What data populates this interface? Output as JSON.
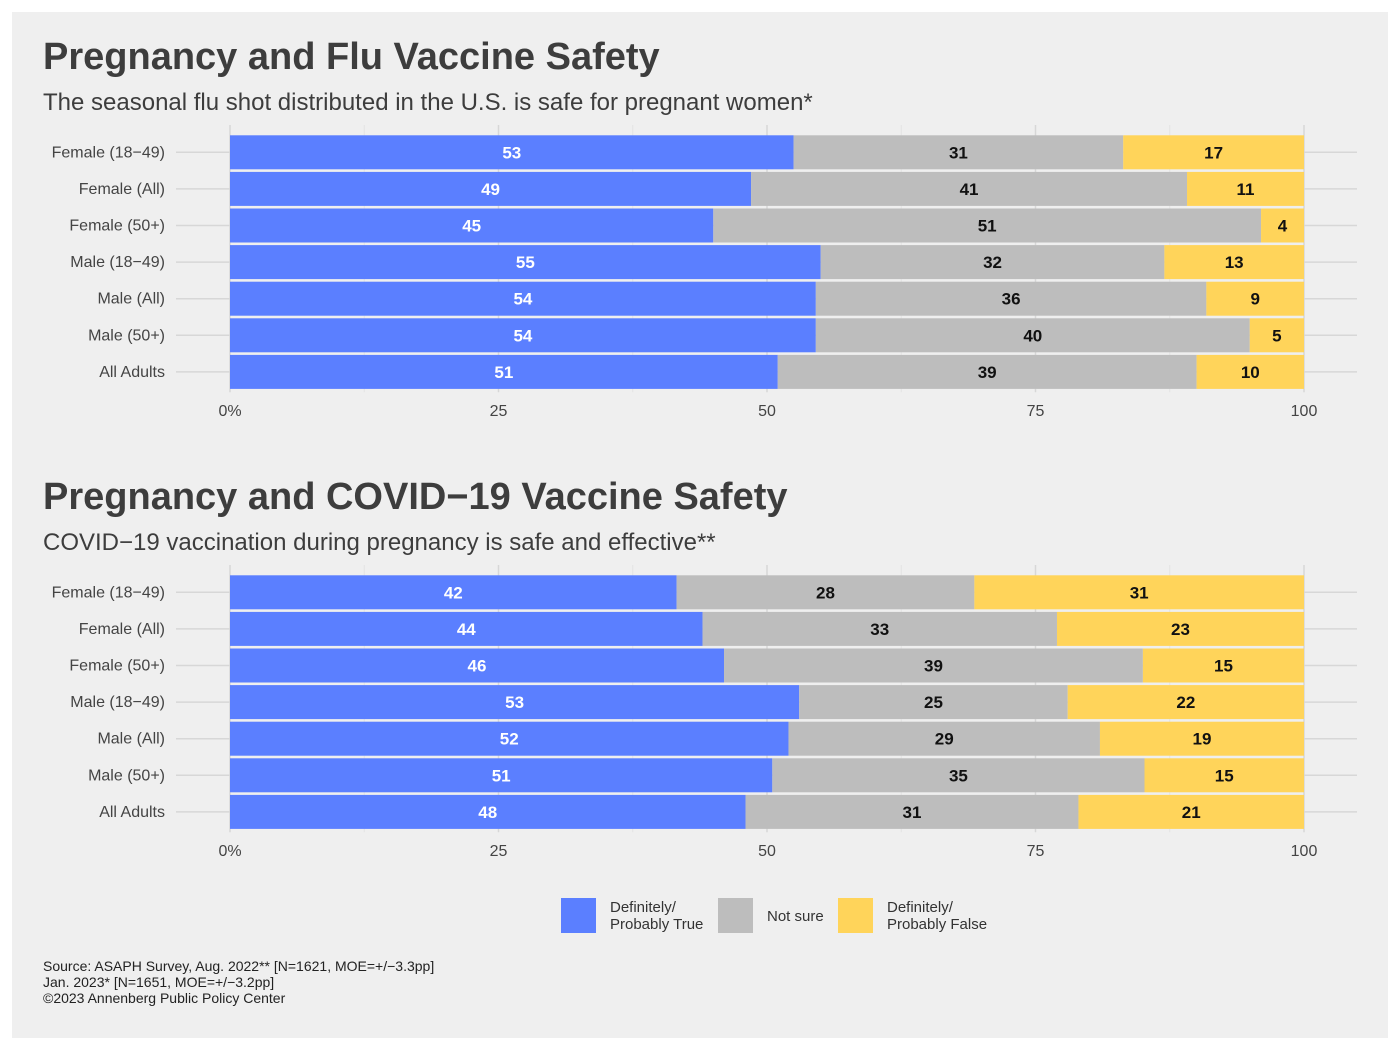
{
  "legend": [
    {
      "label": "Definitely/\nProbably True",
      "color": "#5b7fff"
    },
    {
      "label": "Not sure",
      "color": "#bdbdbd"
    },
    {
      "label": "Definitely/\nProbably False",
      "color": "#ffd45a"
    }
  ],
  "source": [
    "Source: ASAPH Survey, Aug. 2022** [N=1621, MOE=+/−3.3pp]",
    "Jan. 2023* [N=1651, MOE=+/−3.2pp]",
    "©2023 Annenberg Public Policy Center"
  ],
  "chart_data": [
    {
      "type": "bar",
      "orientation": "horizontal",
      "stacked": true,
      "title": "Pregnancy and Flu Vaccine Safety",
      "subtitle": "The seasonal flu shot distributed in the U.S. is safe for pregnant women*",
      "categories": [
        "Female (18−49)",
        "Female (All)",
        "Female (50+)",
        "Male (18−49)",
        "Male (All)",
        "Male (50+)",
        "All Adults"
      ],
      "series": [
        {
          "name": "Definitely/ Probably True",
          "values": [
            53,
            49,
            45,
            55,
            54,
            54,
            51
          ]
        },
        {
          "name": "Not sure",
          "values": [
            31,
            41,
            51,
            32,
            36,
            40,
            39
          ]
        },
        {
          "name": "Definitely/ Probably False",
          "values": [
            17,
            11,
            4,
            13,
            9,
            5,
            10
          ]
        }
      ],
      "xlim": [
        0,
        100
      ],
      "xticks": [
        "0%",
        "25",
        "50",
        "75",
        "100"
      ],
      "grid": true
    },
    {
      "type": "bar",
      "orientation": "horizontal",
      "stacked": true,
      "title": "Pregnancy and COVID−19 Vaccine Safety",
      "subtitle": "COVID−19 vaccination during pregnancy is safe and effective**",
      "categories": [
        "Female (18−49)",
        "Female (All)",
        "Female (50+)",
        "Male (18−49)",
        "Male (All)",
        "Male (50+)",
        "All Adults"
      ],
      "series": [
        {
          "name": "Definitely/ Probably True",
          "values": [
            42,
            44,
            46,
            53,
            52,
            51,
            48
          ]
        },
        {
          "name": "Not sure",
          "values": [
            28,
            33,
            39,
            25,
            29,
            35,
            31
          ]
        },
        {
          "name": "Definitely/ Probably False",
          "values": [
            31,
            23,
            15,
            22,
            19,
            15,
            21
          ]
        }
      ],
      "xlim": [
        0,
        100
      ],
      "xticks": [
        "0%",
        "25",
        "50",
        "75",
        "100"
      ],
      "grid": true
    }
  ]
}
